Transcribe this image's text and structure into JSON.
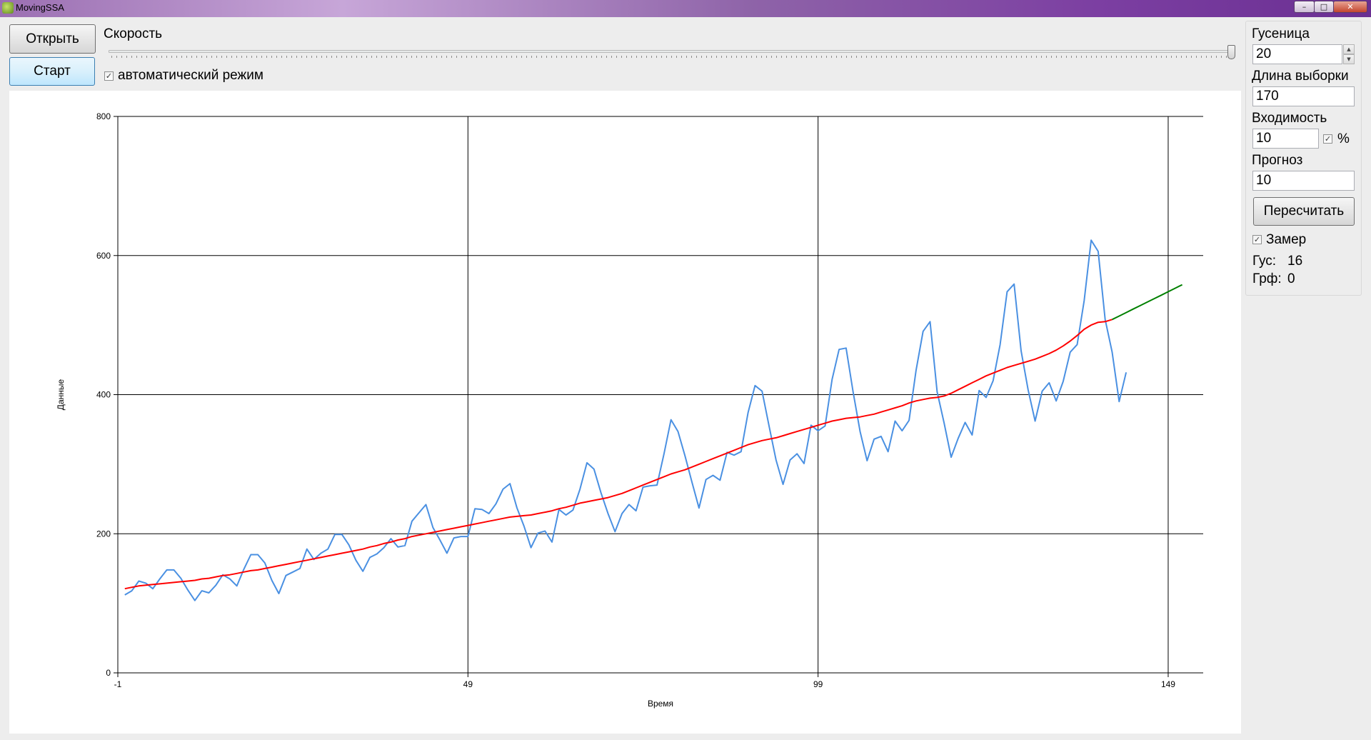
{
  "window": {
    "title": "MovingSSA",
    "min": "–",
    "max": "□",
    "close": "✕"
  },
  "toolbar": {
    "open_label": "Открыть",
    "start_label": "Старт",
    "speed_label": "Скорость",
    "auto_mode_label": "автоматический режим",
    "auto_mode_checked": true
  },
  "params": {
    "caterpillar_label": "Гусеница",
    "caterpillar_value": "20",
    "sample_length_label": "Длина выборки",
    "sample_length_value": "170",
    "inclusion_label": "Входимость",
    "inclusion_value": "10",
    "percent_label": "%",
    "percent_checked": true,
    "forecast_label": "Прогноз",
    "forecast_value": "10",
    "recalc_label": "Пересчитать",
    "measure_label": "Замер",
    "measure_checked": true,
    "gus_label": "Гус:",
    "gus_value": "16",
    "grf_label": "Грф:",
    "grf_value": "0"
  },
  "chart_data": {
    "type": "line",
    "xlabel": "Время",
    "ylabel": "Данные",
    "xlim": [
      -1,
      154
    ],
    "ylim": [
      0,
      800
    ],
    "x_ticks": [
      -1,
      49,
      99,
      149
    ],
    "y_ticks": [
      0,
      200,
      400,
      600,
      800
    ],
    "grid": true,
    "colors": {
      "data": "#4a90e2",
      "trend": "#ff0000",
      "forecast": "#008000"
    },
    "series": [
      {
        "x_start": 0,
        "values": [
          112,
          118,
          132,
          129,
          121,
          135,
          148,
          148,
          136,
          119,
          104,
          118,
          115,
          126,
          141,
          135,
          125,
          149,
          170,
          170,
          158,
          133,
          114,
          140,
          145,
          150,
          178,
          163,
          172,
          178,
          199,
          199,
          184,
          162,
          146,
          166,
          171,
          180,
          193,
          181,
          183,
          218,
          230,
          242,
          209,
          191,
          172,
          194,
          196,
          196,
          236,
          235,
          229,
          243,
          264,
          272,
          237,
          211,
          180,
          201,
          204,
          188,
          235,
          227,
          234,
          264,
          302,
          293,
          259,
          229,
          203,
          229,
          242,
          233,
          267,
          269,
          270,
          315,
          364,
          347,
          312,
          274,
          237,
          278,
          284,
          277,
          317,
          313,
          318,
          374,
          413,
          405,
          355,
          306,
          271,
          306,
          315,
          301,
          356,
          348,
          355,
          422,
          465,
          467,
          404,
          347,
          305,
          336,
          340,
          318,
          362,
          348,
          363,
          435,
          491,
          505,
          404,
          359,
          310,
          337,
          360,
          342,
          406,
          396,
          420,
          472,
          548,
          559,
          463,
          407,
          362,
          405,
          417,
          391,
          419,
          461,
          472,
          535,
          622,
          606,
          508,
          461,
          390,
          432
        ]
      },
      {
        "x_start": 0,
        "values": [
          121,
          123,
          125,
          126,
          127,
          128,
          129,
          130,
          131,
          132,
          133,
          135,
          136,
          138,
          140,
          141,
          143,
          145,
          147,
          148,
          150,
          152,
          154,
          156,
          158,
          160,
          162,
          164,
          166,
          168,
          170,
          172,
          174,
          176,
          178,
          181,
          183,
          186,
          188,
          191,
          193,
          196,
          198,
          200,
          202,
          204,
          206,
          208,
          210,
          212,
          214,
          216,
          218,
          220,
          222,
          224,
          225,
          226,
          227,
          229,
          231,
          233,
          236,
          238,
          241,
          244,
          246,
          248,
          250,
          252,
          255,
          258,
          262,
          266,
          270,
          274,
          278,
          282,
          286,
          289,
          292,
          296,
          300,
          304,
          308,
          312,
          316,
          320,
          324,
          328,
          331,
          334,
          336,
          338,
          341,
          344,
          347,
          350,
          353,
          356,
          359,
          362,
          364,
          366,
          367,
          368,
          370,
          372,
          375,
          378,
          381,
          384,
          388,
          391,
          393,
          395,
          396,
          398,
          402,
          407,
          412,
          417,
          422,
          427,
          431,
          435,
          439,
          442,
          445,
          448,
          451,
          455,
          459,
          464,
          470,
          477,
          485,
          494,
          500,
          504,
          505,
          508
        ]
      },
      {
        "x_start": 141,
        "values": [
          508,
          513,
          518,
          523,
          528,
          533,
          538,
          543,
          548,
          553,
          558
        ]
      }
    ]
  }
}
